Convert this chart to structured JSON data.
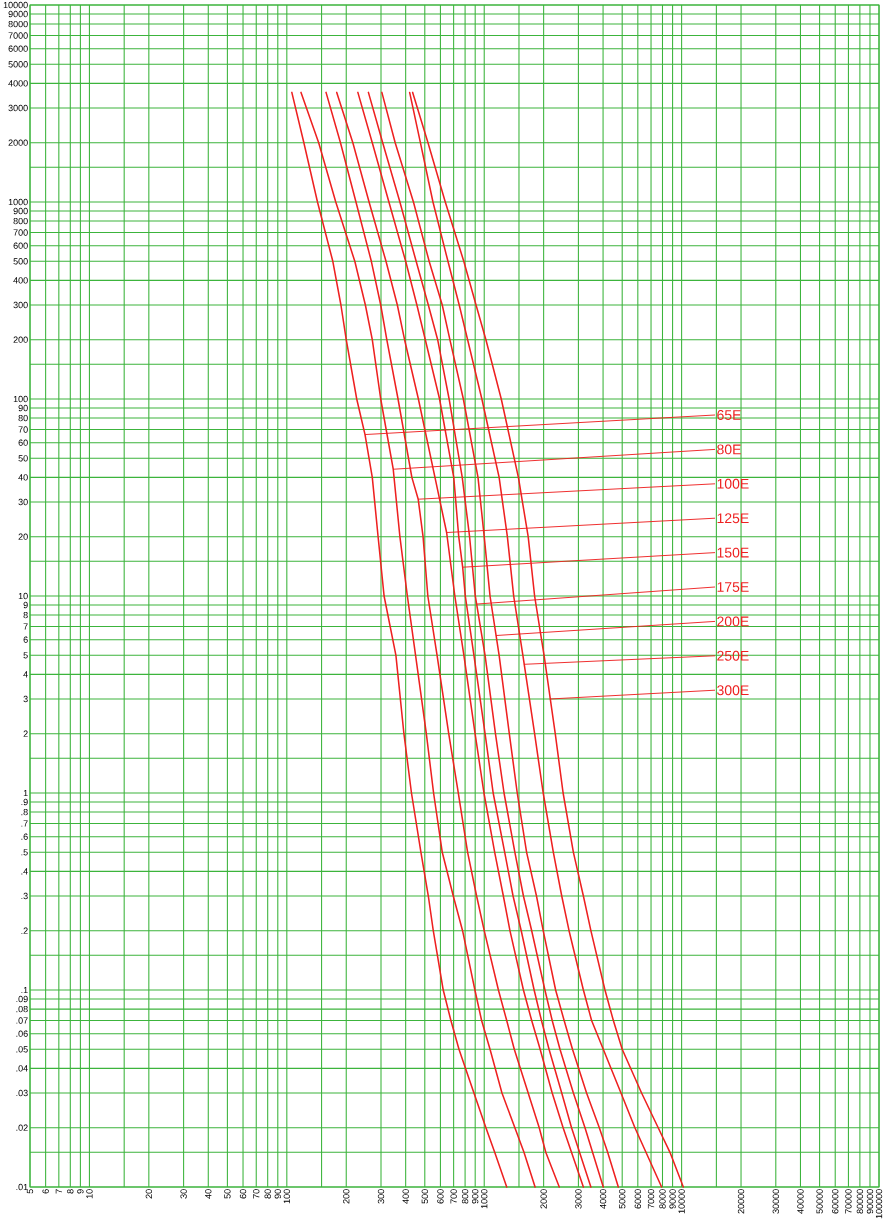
{
  "chart_data": {
    "type": "line",
    "log": "xy",
    "grid": true,
    "xlim": [
      5,
      100000
    ],
    "ylim": [
      0.01,
      10000
    ],
    "xticks": [
      5,
      6,
      7,
      8,
      9,
      10,
      {
        "value": 15,
        "label": null
      },
      20,
      30,
      40,
      50,
      60,
      70,
      80,
      90,
      100,
      {
        "value": 150,
        "label": null
      },
      200,
      300,
      400,
      500,
      600,
      700,
      800,
      900,
      1000,
      {
        "value": 1500,
        "label": null
      },
      2000,
      3000,
      4000,
      5000,
      6000,
      7000,
      8000,
      9000,
      10000,
      {
        "value": 15000,
        "label": null
      },
      20000,
      30000,
      40000,
      50000,
      60000,
      70000,
      80000,
      90000,
      100000
    ],
    "yticks": [
      {
        "value": 0.01,
        "label": ".01"
      },
      {
        "value": 0.015,
        "label": null
      },
      {
        "value": 0.02,
        "label": ".02"
      },
      {
        "value": 0.03,
        "label": ".03"
      },
      {
        "value": 0.04,
        "label": ".04"
      },
      {
        "value": 0.05,
        "label": ".05"
      },
      {
        "value": 0.06,
        "label": ".06"
      },
      {
        "value": 0.07,
        "label": ".07"
      },
      {
        "value": 0.08,
        "label": ".08"
      },
      {
        "value": 0.09,
        "label": ".09"
      },
      {
        "value": 0.1,
        "label": ".1"
      },
      {
        "value": 0.15,
        "label": null
      },
      {
        "value": 0.2,
        "label": ".2"
      },
      {
        "value": 0.3,
        "label": ".3"
      },
      {
        "value": 0.4,
        "label": ".4"
      },
      {
        "value": 0.5,
        "label": ".5"
      },
      {
        "value": 0.6,
        "label": ".6"
      },
      {
        "value": 0.7,
        "label": ".7"
      },
      {
        "value": 0.8,
        "label": ".8"
      },
      {
        "value": 0.9,
        "label": ".9"
      },
      1,
      {
        "value": 1.5,
        "label": null
      },
      2,
      3,
      4,
      5,
      6,
      7,
      8,
      9,
      10,
      {
        "value": 15,
        "label": null
      },
      20,
      30,
      40,
      50,
      60,
      70,
      80,
      90,
      100,
      {
        "value": 150,
        "label": null
      },
      200,
      300,
      400,
      500,
      600,
      700,
      800,
      900,
      1000,
      {
        "value": 1500,
        "label": null
      },
      2000,
      3000,
      4000,
      5000,
      6000,
      7000,
      8000,
      9000,
      10000
    ],
    "series": [
      {
        "color": "#ee2020",
        "x": [
          106,
          122,
          143,
          171,
          188,
          200,
          226,
          249,
          271,
          290,
          311,
          357,
          392,
          428,
          478,
          521,
          552,
          620,
          678,
          745,
          887,
          1020,
          1130,
          1300
        ],
        "values": [
          3600,
          2000,
          1000,
          500,
          300,
          200,
          100,
          66,
          40,
          20,
          10,
          5,
          2,
          1,
          0.5,
          0.3,
          0.2,
          0.1,
          0.07,
          0.05,
          0.03,
          0.02,
          0.015,
          0.01
        ]
      },
      {
        "color": "#ee2020",
        "x": [
          118,
          145,
          177,
          221,
          250,
          271,
          299,
          346,
          374,
          408,
          449,
          509,
          554,
          613,
          697,
          777,
          897,
          970,
          1070,
          1230,
          1430,
          1590,
          1810
        ],
        "values": [
          3600,
          2000,
          1000,
          500,
          300,
          200,
          100,
          44,
          20,
          10,
          5,
          2,
          1,
          0.5,
          0.3,
          0.2,
          0.1,
          0.07,
          0.05,
          0.03,
          0.02,
          0.015,
          0.01
        ]
      },
      {
        "color": "#ee2020",
        "x": [
          158,
          187,
          224,
          268,
          299,
          321,
          366,
          430,
          463,
          490,
          518,
          577,
          661,
          739,
          824,
          915,
          1000,
          1180,
          1300,
          1420,
          1670,
          1900,
          2050,
          2400
        ],
        "values": [
          3600,
          2000,
          1000,
          500,
          300,
          200,
          100,
          40,
          31,
          20,
          10,
          5,
          2,
          1,
          0.5,
          0.3,
          0.2,
          0.1,
          0.07,
          0.05,
          0.03,
          0.02,
          0.015,
          0.01
        ]
      },
      {
        "color": "#ee2020",
        "x": [
          179,
          216,
          261,
          318,
          363,
          395,
          464,
          563,
          645,
          710,
          789,
          899,
          997,
          1130,
          1250,
          1350,
          1580,
          1740,
          1920,
          2210,
          2510,
          3180
        ],
        "values": [
          3600,
          2000,
          1000,
          500,
          300,
          200,
          100,
          40,
          21,
          10,
          5,
          2,
          1,
          0.5,
          0.3,
          0.2,
          0.1,
          0.07,
          0.05,
          0.03,
          0.02,
          0.01
        ]
      },
      {
        "color": "#ee2020",
        "x": [
          229,
          271,
          329,
          400,
          456,
          503,
          594,
          701,
          743,
          778,
          802,
          887,
          1010,
          1110,
          1270,
          1400,
          1540,
          1790,
          1950,
          2130,
          2470,
          2770,
          3470
        ],
        "values": [
          3600,
          2000,
          1000,
          500,
          300,
          200,
          100,
          40,
          20,
          14,
          10,
          5,
          2,
          1,
          0.5,
          0.3,
          0.2,
          0.1,
          0.07,
          0.05,
          0.03,
          0.02,
          0.01
        ]
      },
      {
        "color": "#ee2020",
        "x": [
          259,
          306,
          374,
          452,
          521,
          581,
          664,
          774,
          843,
          901,
          1010,
          1140,
          1260,
          1430,
          1580,
          1740,
          2030,
          2210,
          2420,
          2830,
          3240,
          4010
        ],
        "values": [
          3600,
          2000,
          1000,
          500,
          300,
          200,
          100,
          40,
          20,
          10,
          5,
          2,
          1,
          0.5,
          0.3,
          0.2,
          0.1,
          0.07,
          0.05,
          0.03,
          0.02,
          0.01
        ]
      },
      {
        "color": "#ee2020",
        "x": [
          303,
          354,
          438,
          526,
          613,
          670,
          784,
          930,
          1000,
          1070,
          1190,
          1340,
          1470,
          1640,
          1840,
          1990,
          2300,
          2540,
          2800,
          3300,
          3830,
          4220,
          4780
        ],
        "values": [
          3600,
          2000,
          1000,
          500,
          300,
          200,
          100,
          40,
          20,
          10,
          5,
          2,
          1,
          0.5,
          0.3,
          0.2,
          0.1,
          0.07,
          0.05,
          0.03,
          0.02,
          0.015,
          0.01
        ]
      },
      {
        "color": "#ee2020",
        "x": [
          419,
          475,
          550,
          655,
          747,
          824,
          973,
          1190,
          1310,
          1410,
          1570,
          1800,
          1990,
          2240,
          2470,
          2690,
          3180,
          3500,
          4010,
          4930,
          5800,
          7920
        ],
        "values": [
          3600,
          2000,
          1000,
          500,
          300,
          200,
          100,
          40,
          20,
          10,
          5,
          2,
          1,
          0.5,
          0.3,
          0.2,
          0.1,
          0.07,
          0.05,
          0.03,
          0.02,
          0.01
        ]
      },
      {
        "color": "#ee2020",
        "x": [
          434,
          519,
          635,
          788,
          909,
          1020,
          1220,
          1490,
          1670,
          1800,
          2010,
          2290,
          2510,
          2830,
          3180,
          3470,
          4090,
          4510,
          5000,
          6270,
          7610,
          8730,
          10200
        ],
        "values": [
          3600,
          2000,
          1000,
          500,
          300,
          200,
          100,
          40,
          20,
          10,
          5,
          2,
          1,
          0.5,
          0.3,
          0.2,
          0.1,
          0.07,
          0.05,
          0.03,
          0.02,
          0.015,
          0.01
        ]
      }
    ],
    "annotations": [
      {
        "text": "65E",
        "x": 249,
        "y": 66
      },
      {
        "text": "80E",
        "x": 346,
        "y": 44
      },
      {
        "text": "100E",
        "x": 463,
        "y": 31
      },
      {
        "text": "125E",
        "x": 645,
        "y": 21
      },
      {
        "text": "150E",
        "x": 778,
        "y": 14
      },
      {
        "text": "175E",
        "x": 915,
        "y": 9.1
      },
      {
        "text": "200E",
        "x": 1146,
        "y": 6.3
      },
      {
        "text": "250E",
        "x": 1589,
        "y": 4.5
      },
      {
        "text": "300E",
        "x": 2151,
        "y": 3.0
      }
    ]
  }
}
